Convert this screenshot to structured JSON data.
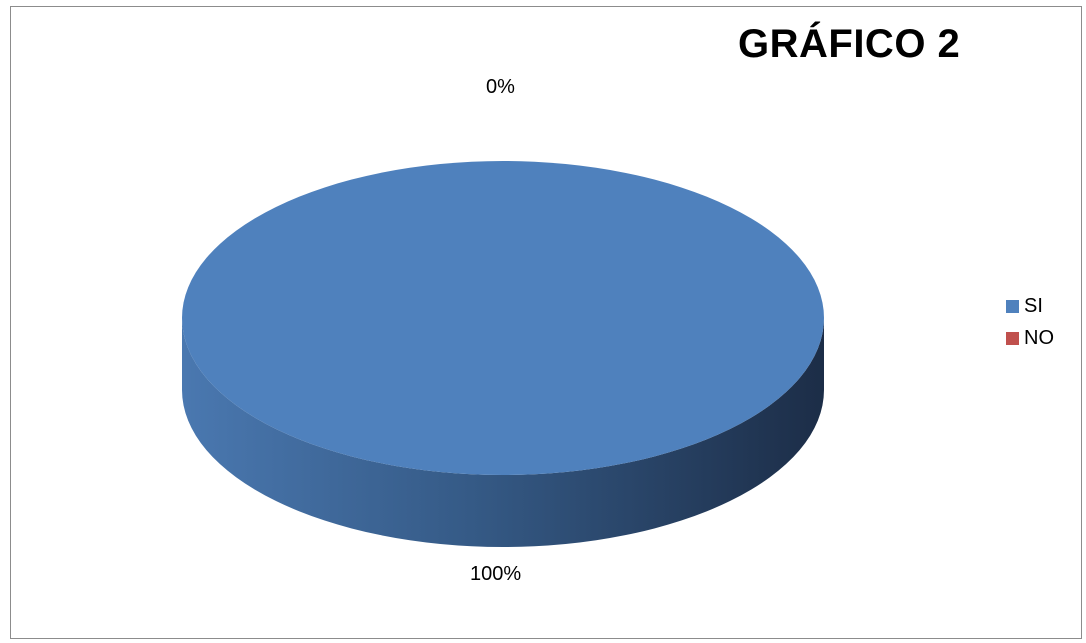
{
  "chart_data": {
    "type": "pie",
    "title": "GRÁFICO 2",
    "categories": [
      "SI",
      "NO"
    ],
    "values": [
      100,
      0
    ],
    "value_labels": [
      "100%",
      "0%"
    ],
    "colors": [
      "#4f81bd",
      "#c0504d"
    ],
    "three_d": true,
    "legend_position": "right"
  }
}
